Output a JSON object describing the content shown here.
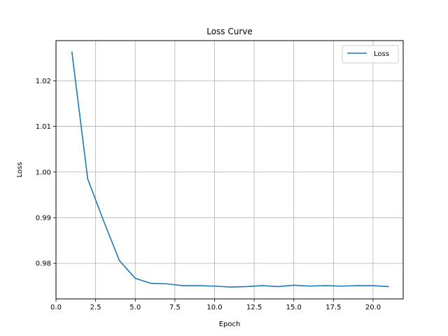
{
  "chart_data": {
    "type": "line",
    "title": "Loss Curve",
    "xlabel": "Epoch",
    "ylabel": "Loss",
    "xlim": [
      0,
      21.9
    ],
    "ylim": [
      0.9722,
      1.0288
    ],
    "grid": true,
    "legend_position": "top-right",
    "x_ticks": [
      0.0,
      2.5,
      5.0,
      7.5,
      10.0,
      12.5,
      15.0,
      17.5,
      20.0
    ],
    "x_tick_labels": [
      "0.0",
      "2.5",
      "5.0",
      "7.5",
      "10.0",
      "12.5",
      "15.0",
      "17.5",
      "20.0"
    ],
    "y_ticks": [
      0.98,
      0.99,
      1.0,
      1.01,
      1.02
    ],
    "y_tick_labels": [
      "0.98",
      "0.99",
      "1.00",
      "1.01",
      "1.02"
    ],
    "series": [
      {
        "name": "Loss",
        "color": "#1f77b4",
        "x": [
          1,
          2,
          3,
          4,
          5,
          6,
          7,
          8,
          9,
          10,
          11,
          12,
          13,
          14,
          15,
          16,
          17,
          18,
          19,
          20,
          21
        ],
        "y": [
          1.0264,
          0.9985,
          0.9893,
          0.9806,
          0.9767,
          0.9756,
          0.9755,
          0.9751,
          0.9751,
          0.975,
          0.9748,
          0.9749,
          0.9751,
          0.9749,
          0.9752,
          0.975,
          0.9751,
          0.975,
          0.9751,
          0.9751,
          0.9749
        ]
      }
    ]
  }
}
